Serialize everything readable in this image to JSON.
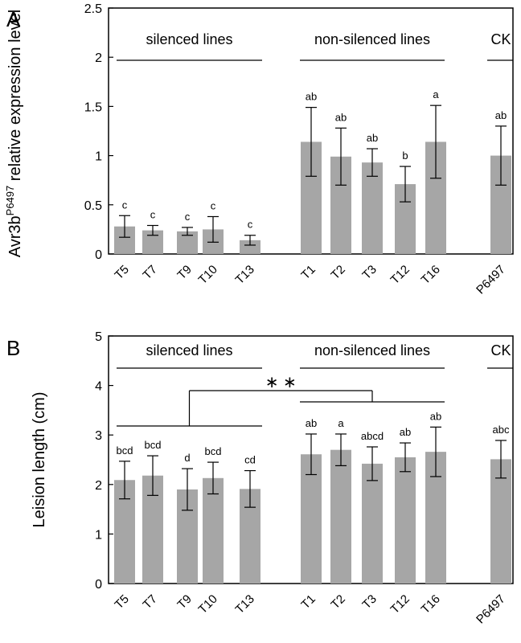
{
  "chart_data": [
    {
      "type": "bar",
      "panel_label": "A",
      "ylabel_main": "Avr3b",
      "ylabel_sup": "P6497",
      "ylabel_rest": " relative expression level",
      "ylim": [
        0,
        2.5
      ],
      "yticks": [
        0,
        0.5,
        1,
        1.5,
        2,
        2.5
      ],
      "ytick_labels": [
        "0",
        "0.5",
        "1",
        "1.5",
        "2",
        "2.5"
      ],
      "categories": [
        "T5",
        "T7",
        "T9",
        "T10",
        "T13",
        "T1",
        "T2",
        "T3",
        "T12",
        "T16",
        "P6497"
      ],
      "values": [
        0.28,
        0.24,
        0.23,
        0.25,
        0.14,
        1.14,
        0.99,
        0.93,
        0.71,
        1.14,
        1.0
      ],
      "errors": [
        0.11,
        0.05,
        0.04,
        0.13,
        0.05,
        0.35,
        0.29,
        0.14,
        0.18,
        0.37,
        0.3
      ],
      "letters": [
        "c",
        "c",
        "c",
        "c",
        "c",
        "ab",
        "ab",
        "ab",
        "b",
        "a",
        "ab"
      ],
      "groups": [
        {
          "label": "silenced lines",
          "from": 0,
          "to": 4
        },
        {
          "label": "non-silenced lines",
          "from": 5,
          "to": 9
        },
        {
          "label": "CK",
          "from": 10,
          "to": 10
        }
      ],
      "bar_color": "#a6a6a6",
      "grid": false
    },
    {
      "type": "bar",
      "panel_label": "B",
      "ylabel": "Leision length (cm)",
      "ylim": [
        0,
        5
      ],
      "yticks": [
        0,
        1,
        2,
        3,
        4,
        5
      ],
      "ytick_labels": [
        "0",
        "1",
        "2",
        "3",
        "4",
        "5"
      ],
      "categories": [
        "T5",
        "T7",
        "T9",
        "T10",
        "T13",
        "T1",
        "T2",
        "T3",
        "T12",
        "T16",
        "P6497"
      ],
      "values": [
        2.09,
        2.18,
        1.9,
        2.13,
        1.91,
        2.61,
        2.7,
        2.42,
        2.55,
        2.66,
        2.51
      ],
      "errors": [
        0.38,
        0.4,
        0.42,
        0.32,
        0.37,
        0.41,
        0.32,
        0.34,
        0.29,
        0.5,
        0.38
      ],
      "letters": [
        "bcd",
        "bcd",
        "d",
        "bcd",
        "cd",
        "ab",
        "a",
        "abcd",
        "ab",
        "ab",
        "abc"
      ],
      "groups": [
        {
          "label": "silenced lines",
          "from": 0,
          "to": 4
        },
        {
          "label": "non-silenced lines",
          "from": 5,
          "to": 9
        },
        {
          "label": "CK",
          "from": 10,
          "to": 10
        }
      ],
      "comparison": {
        "label": "∗ ∗",
        "left_group": 0,
        "right_group": 1
      },
      "bar_color": "#a6a6a6",
      "grid": false
    }
  ]
}
